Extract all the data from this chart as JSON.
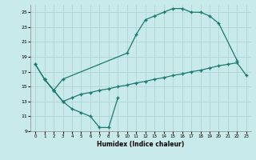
{
  "xlabel": "Humidex (Indice chaleur)",
  "background_color": "#c9eaea",
  "grid_color": "#afd4d4",
  "line_color": "#1a7a6e",
  "xlim": [
    -0.5,
    23.5
  ],
  "ylim": [
    9,
    26
  ],
  "xticks": [
    0,
    1,
    2,
    3,
    4,
    5,
    6,
    7,
    8,
    9,
    10,
    11,
    12,
    13,
    14,
    15,
    16,
    17,
    18,
    19,
    20,
    21,
    22,
    23
  ],
  "yticks": [
    9,
    11,
    13,
    15,
    17,
    19,
    21,
    23,
    25
  ],
  "line1_x": [
    0,
    1,
    2,
    3,
    4,
    5,
    6,
    7,
    8,
    9
  ],
  "line1_y": [
    18,
    16,
    14.5,
    13,
    12,
    11.5,
    11,
    9.5,
    9.5,
    13.5
  ],
  "line2_x": [
    1,
    2,
    3,
    4,
    5,
    6,
    7,
    8,
    9,
    10,
    11,
    12,
    13,
    14,
    15,
    16,
    17,
    18,
    19,
    20,
    21,
    22,
    23
  ],
  "line2_y": [
    16,
    14.5,
    13,
    13.5,
    14,
    14.2,
    14.5,
    14.7,
    15,
    15.2,
    15.5,
    15.7,
    16,
    16.2,
    16.5,
    16.7,
    17,
    17.2,
    17.5,
    17.8,
    18,
    18.2,
    16.5
  ],
  "line3_x": [
    0,
    1,
    2,
    3,
    10,
    11,
    12,
    13,
    14,
    15,
    16,
    17,
    18,
    19,
    20,
    22
  ],
  "line3_y": [
    18,
    16,
    14.5,
    16,
    19.5,
    22,
    24,
    24.5,
    25,
    25.5,
    25.5,
    25,
    25,
    24.5,
    23.5,
    18.5
  ]
}
